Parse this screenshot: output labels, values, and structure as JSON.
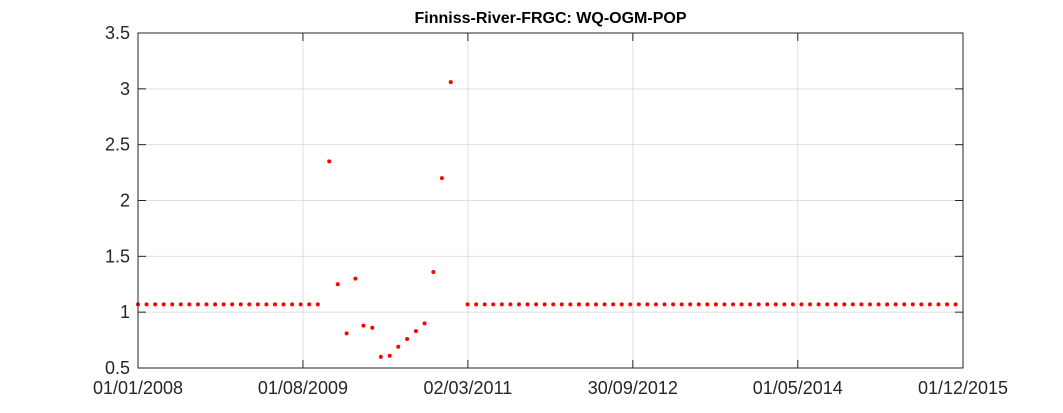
{
  "chart_data": {
    "type": "scatter",
    "title": "Finniss-River-FRGC: WQ-OGM-POP",
    "xlabel": "",
    "ylabel": "",
    "x_axis_type": "date",
    "xlim": [
      "2008-01-01",
      "2015-12-01"
    ],
    "ylim": [
      0.5,
      3.5
    ],
    "x_ticks": [
      {
        "date": "2008-01-01",
        "label": "01/01/2008"
      },
      {
        "date": "2009-08-01",
        "label": "01/08/2009"
      },
      {
        "date": "2011-03-02",
        "label": "02/03/2011"
      },
      {
        "date": "2012-09-30",
        "label": "30/09/2012"
      },
      {
        "date": "2014-05-01",
        "label": "01/05/2014"
      },
      {
        "date": "2015-12-01",
        "label": "01/12/2015"
      }
    ],
    "y_ticks": [
      {
        "value": 0.5,
        "label": "0.5"
      },
      {
        "value": 1,
        "label": "1"
      },
      {
        "value": 1.5,
        "label": "1.5"
      },
      {
        "value": 2,
        "label": "2"
      },
      {
        "value": 2.5,
        "label": "2.5"
      },
      {
        "value": 3,
        "label": "3"
      },
      {
        "value": 3.5,
        "label": "3.5"
      }
    ],
    "grid": true,
    "marker_color": "#ff0000",
    "series": [
      {
        "constant_segments": [
          {
            "x_start": "2008-01-01",
            "x_end": "2009-10-15",
            "x_step_days": 30,
            "y": 1.07
          },
          {
            "x_start": "2011-03-01",
            "x_end": "2015-12-01",
            "x_step_days": 30,
            "y": 1.07
          }
        ],
        "points": [
          {
            "x": "2009-11-01",
            "y": 2.35
          },
          {
            "x": "2009-12-01",
            "y": 1.25
          },
          {
            "x": "2010-01-01",
            "y": 0.81
          },
          {
            "x": "2010-02-01",
            "y": 1.3
          },
          {
            "x": "2010-03-01",
            "y": 0.88
          },
          {
            "x": "2010-04-01",
            "y": 0.86
          },
          {
            "x": "2010-05-01",
            "y": 0.6
          },
          {
            "x": "2010-06-01",
            "y": 0.61
          },
          {
            "x": "2010-07-01",
            "y": 0.69
          },
          {
            "x": "2010-08-01",
            "y": 0.76
          },
          {
            "x": "2010-09-01",
            "y": 0.83
          },
          {
            "x": "2010-10-01",
            "y": 0.9
          },
          {
            "x": "2010-11-01",
            "y": 1.36
          },
          {
            "x": "2010-12-01",
            "y": 2.2
          },
          {
            "x": "2011-01-01",
            "y": 3.06
          }
        ]
      }
    ]
  }
}
